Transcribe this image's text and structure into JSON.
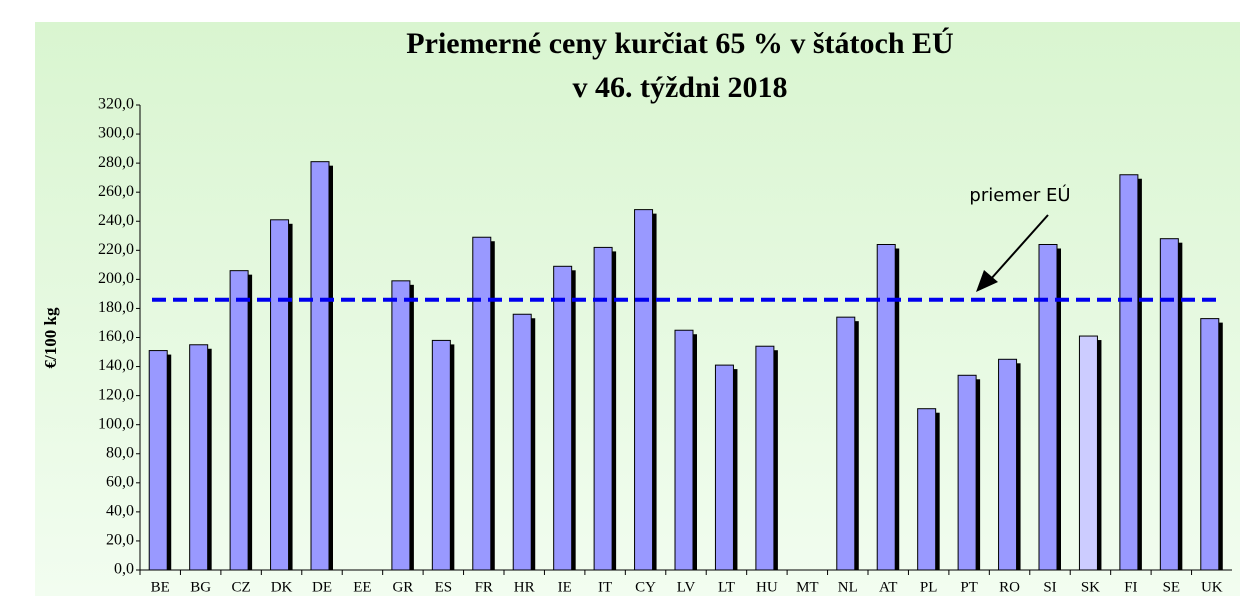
{
  "chart_data": {
    "type": "bar",
    "title": [
      "Priemerné ceny kurčiat 65 % v štátoch EÚ",
      "v 46. týždni 2018"
    ],
    "y_label": "€/100 kg",
    "categories": [
      "BE",
      "BG",
      "CZ",
      "DK",
      "DE",
      "EE",
      "GR",
      "ES",
      "FR",
      "HR",
      "IE",
      "IT",
      "CY",
      "LV",
      "LT",
      "HU",
      "MT",
      "NL",
      "AT",
      "PL",
      "PT",
      "RO",
      "SI",
      "SK",
      "FI",
      "SE",
      "UK"
    ],
    "values": [
      151,
      155,
      206,
      241,
      281,
      null,
      199,
      158,
      229,
      176,
      209,
      222,
      248,
      165,
      141,
      154,
      null,
      174,
      224,
      111,
      134,
      145,
      224,
      161,
      272,
      228,
      173
    ],
    "colors": [
      "#9999ff",
      "#9999ff",
      "#9999ff",
      "#9999ff",
      "#9999ff",
      "#9999ff",
      "#9999ff",
      "#9999ff",
      "#9999ff",
      "#9999ff",
      "#9999ff",
      "#9999ff",
      "#9999ff",
      "#9999ff",
      "#9999ff",
      "#9999ff",
      "#9999ff",
      "#9999ff",
      "#9999ff",
      "#9999ff",
      "#9999ff",
      "#9999ff",
      "#9999ff",
      "#ccccff",
      "#9999ff",
      "#9999ff",
      "#9999ff"
    ],
    "average": {
      "label": "priemer EÚ",
      "value": 186,
      "color": "#0000ee"
    },
    "ylim": [
      0,
      320
    ],
    "yticks": [
      {
        "value": 0,
        "label": "0,0"
      },
      {
        "value": 20,
        "label": "20,0"
      },
      {
        "value": 40,
        "label": "40,0"
      },
      {
        "value": 60,
        "label": "60,0"
      },
      {
        "value": 80,
        "label": "80,0"
      },
      {
        "value": 100,
        "label": "100,0"
      },
      {
        "value": 120,
        "label": "120,0"
      },
      {
        "value": 140,
        "label": "140,0"
      },
      {
        "value": 160,
        "label": "160,0"
      },
      {
        "value": 180,
        "label": "180,0"
      },
      {
        "value": 200,
        "label": "200,0"
      },
      {
        "value": 220,
        "label": "220,0"
      },
      {
        "value": 240,
        "label": "240,0"
      },
      {
        "value": 260,
        "label": "260,0"
      },
      {
        "value": 280,
        "label": "280,0"
      },
      {
        "value": 300,
        "label": "300,0"
      },
      {
        "value": 320,
        "label": "320,0"
      }
    ],
    "grid": false
  }
}
